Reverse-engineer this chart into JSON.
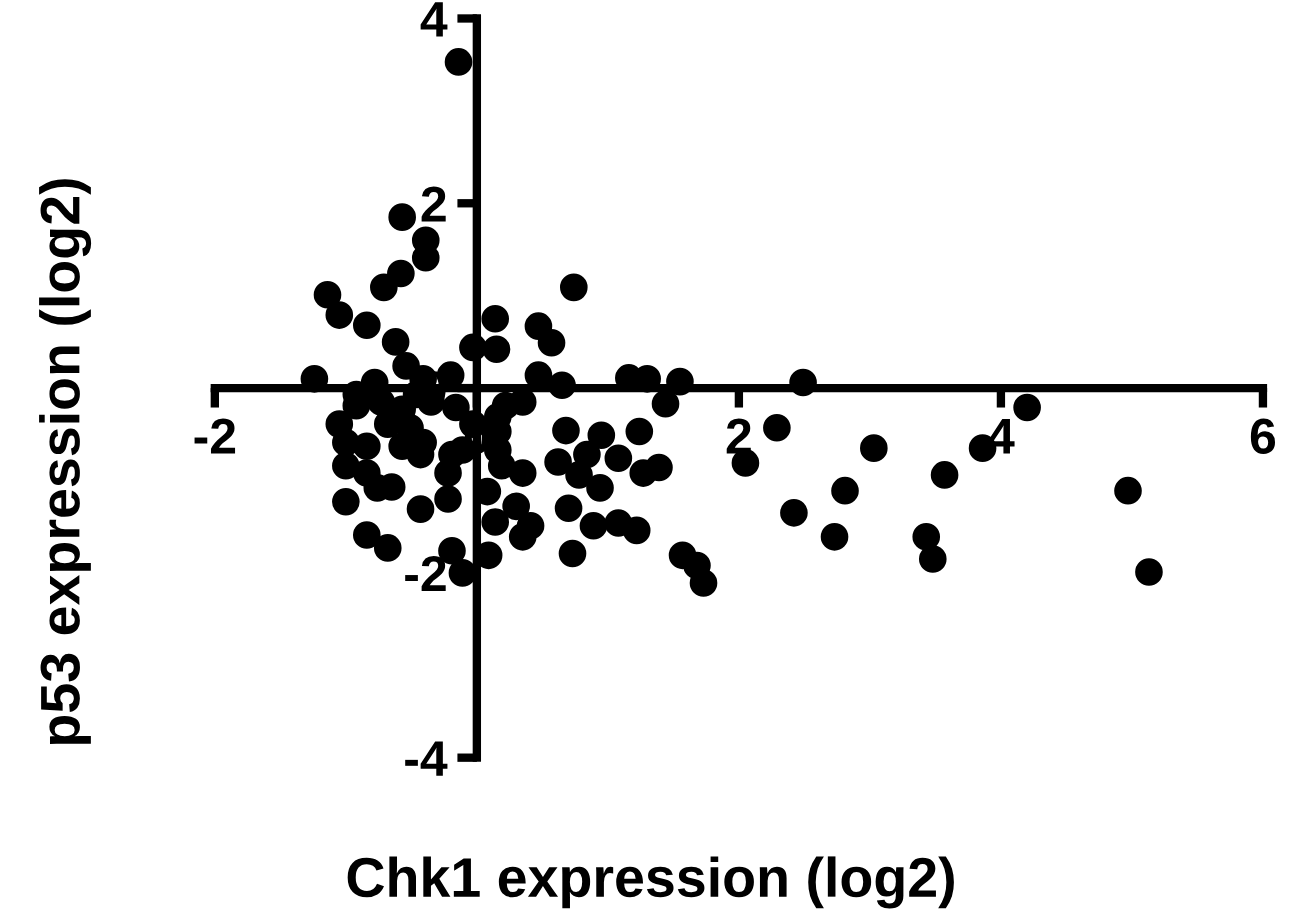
{
  "chart_data": {
    "type": "scatter",
    "xlabel": "Chk1 expression (log2)",
    "ylabel": "p53 expression (log2)",
    "xlim": [
      -2,
      6
    ],
    "ylim": [
      -4,
      4
    ],
    "xticks": [
      -2,
      0,
      2,
      4,
      6
    ],
    "yticks": [
      -4,
      -2,
      0,
      2,
      4
    ],
    "marker": "circle",
    "series": [
      {
        "color": "#000000",
        "x": [
          -0.14,
          -0.57,
          -0.39,
          -0.39,
          -0.58,
          -0.71,
          0.74,
          -1.14,
          -1.05,
          -0.84,
          0.14,
          0.47,
          0.57,
          -0.62,
          -0.03,
          0.15,
          -0.54,
          -1.24,
          -0.78,
          -0.41,
          -0.2,
          0.47,
          0.65,
          1.16,
          1.3,
          1.55,
          2.49,
          1.44,
          4.2,
          -0.92,
          -0.73,
          -0.57,
          -0.35,
          -0.16,
          0.22,
          0.35,
          -1.05,
          -1.0,
          -0.84,
          -0.68,
          -0.57,
          -0.41,
          -0.03,
          0.16,
          -0.11,
          0.16,
          0.68,
          0.95,
          1.24,
          0.62,
          0.84,
          1.08,
          0.78,
          0.94,
          1.27,
          1.39,
          -1.0,
          -0.84,
          -0.76,
          -0.65,
          -0.22,
          0.19,
          0.35,
          -1.0,
          -0.43,
          -0.22,
          0.08,
          0.14,
          0.3,
          0.41,
          0.35,
          0.7,
          0.89,
          1.08,
          1.22,
          0.73,
          -0.84,
          -0.68,
          -0.19,
          -0.11,
          0.09,
          1.57,
          1.68,
          1.73,
          2.05,
          2.29,
          3.03,
          2.42,
          2.81,
          2.73,
          3.57,
          3.86,
          3.43,
          3.48,
          4.97,
          5.13,
          -0.92,
          -0.46,
          -0.51,
          -0.43,
          0.16,
          -0.19
        ],
        "values": [
          3.53,
          1.85,
          1.6,
          1.41,
          1.24,
          1.09,
          1.09,
          1.01,
          0.79,
          0.68,
          0.75,
          0.67,
          0.49,
          0.5,
          0.44,
          0.42,
          0.24,
          0.1,
          0.06,
          0.1,
          0.14,
          0.14,
          0.03,
          0.11,
          0.1,
          0.07,
          0.06,
          -0.17,
          -0.21,
          -0.19,
          -0.15,
          -0.23,
          -0.15,
          -0.21,
          -0.19,
          -0.15,
          -0.39,
          -0.59,
          -0.63,
          -0.39,
          -0.63,
          -0.59,
          -0.39,
          -0.47,
          -0.67,
          -0.67,
          -0.46,
          -0.51,
          -0.47,
          -0.8,
          -0.72,
          -0.76,
          -0.94,
          -1.08,
          -0.92,
          -0.86,
          -0.84,
          -0.92,
          -1.08,
          -1.07,
          -0.92,
          -0.84,
          -0.92,
          -1.23,
          -1.31,
          -1.2,
          -1.12,
          -1.45,
          -1.28,
          -1.49,
          -1.61,
          -1.3,
          -1.49,
          -1.46,
          -1.54,
          -1.79,
          -1.59,
          -1.73,
          -1.76,
          -2.0,
          -1.81,
          -1.81,
          -1.92,
          -2.11,
          -0.81,
          -0.43,
          -0.65,
          -1.35,
          -1.11,
          -1.61,
          -0.94,
          -0.65,
          -1.61,
          -1.85,
          -1.11,
          -1.99,
          -0.07,
          -0.07,
          -0.43,
          -0.72,
          -0.31,
          -0.72
        ]
      }
    ]
  }
}
